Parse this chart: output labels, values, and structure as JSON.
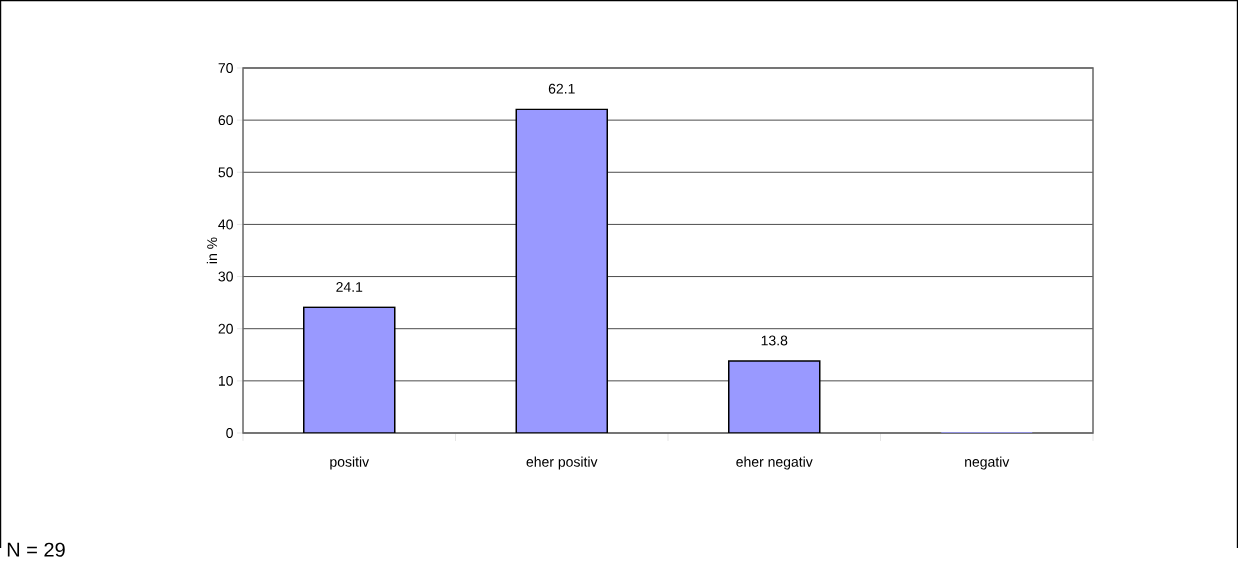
{
  "chart_data": {
    "type": "bar",
    "ylabel": "in %",
    "categories": [
      "positiv",
      "eher positiv",
      "eher negativ",
      "negativ"
    ],
    "values": [
      24.1,
      62.1,
      13.8,
      0
    ],
    "value_labels": [
      "24.1",
      "62.1",
      "13.8",
      null
    ],
    "color": "#9999ff",
    "ylim": [
      0,
      70
    ],
    "yticks": [
      0,
      10,
      20,
      30,
      40,
      50,
      60,
      70
    ],
    "grid": "y",
    "annotations": [
      "N = 29"
    ]
  }
}
